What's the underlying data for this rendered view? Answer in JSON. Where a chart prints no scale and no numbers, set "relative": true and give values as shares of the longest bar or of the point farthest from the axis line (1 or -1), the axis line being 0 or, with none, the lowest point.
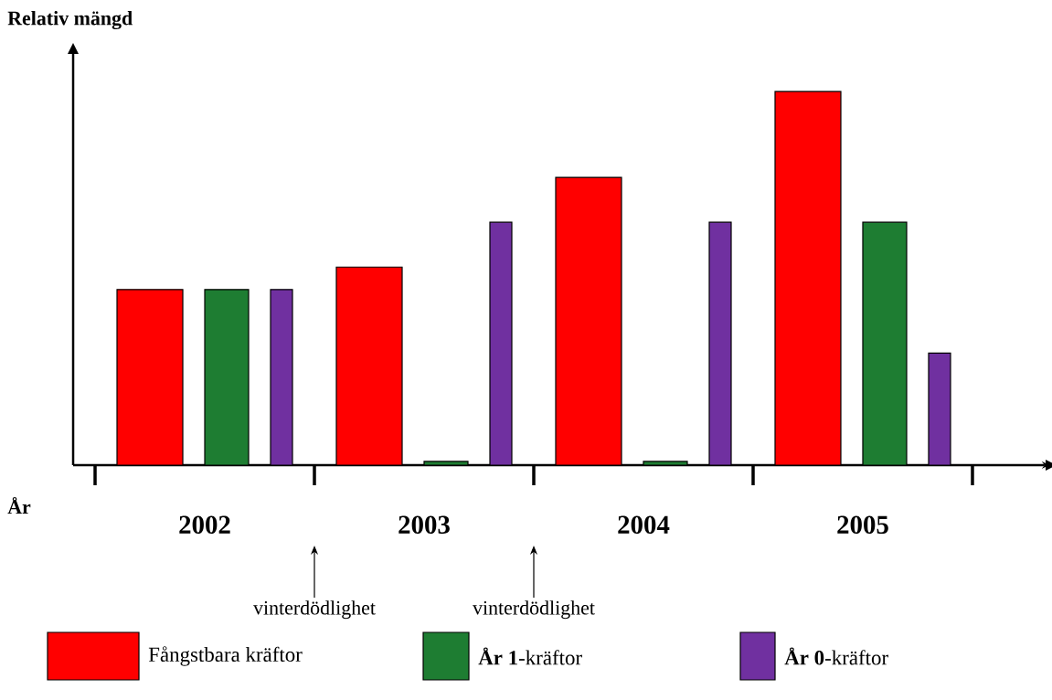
{
  "chart_data": {
    "type": "bar",
    "relative": true,
    "xlabel": "År",
    "ylabel": "Relativ mängd",
    "categories": [
      "2002",
      "2003",
      "2004",
      "2005"
    ],
    "legend": "bottom",
    "series": [
      {
        "name": "Fångstbara kräftor",
        "color": "#ff0000",
        "values": [
          0.47,
          0.53,
          0.77,
          1
        ]
      },
      {
        "name": "**År 1**-kräftor",
        "color": "#1e7d32",
        "values": [
          0.47,
          0.01,
          0.01,
          0.65
        ]
      },
      {
        "name": "**År 0**-kräftor",
        "color": "#7030a0",
        "values": [
          0.47,
          0.65,
          0.65,
          0.3
        ]
      }
    ],
    "annotations": [
      "vinterdödlighet",
      "vinterdödlighet"
    ]
  }
}
